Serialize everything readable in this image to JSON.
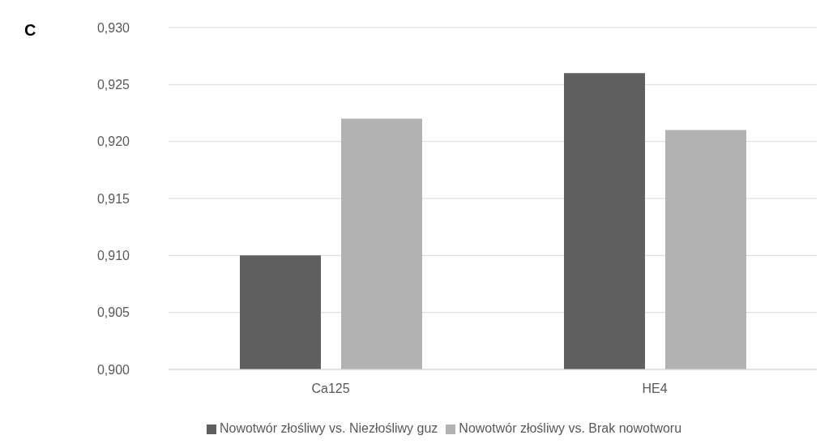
{
  "chart_data": {
    "type": "bar",
    "title": "C",
    "categories": [
      "Ca125",
      "HE4"
    ],
    "series": [
      {
        "name": "Nowotwór złośliwy vs. Niezłośliwy guz",
        "color": "#5f5f5f",
        "values": [
          0.91,
          0.926
        ]
      },
      {
        "name": "Nowotwór złośliwy vs. Brak nowotworu",
        "color": "#b2b2b2",
        "values": [
          0.922,
          0.921
        ]
      }
    ],
    "ylim": [
      0.9,
      0.93
    ],
    "yticks": [
      {
        "value": 0.9,
        "label": "0,900"
      },
      {
        "value": 0.905,
        "label": "0,905"
      },
      {
        "value": 0.91,
        "label": "0,910"
      },
      {
        "value": 0.915,
        "label": "0,915"
      },
      {
        "value": 0.92,
        "label": "0,920"
      },
      {
        "value": 0.925,
        "label": "0,925"
      },
      {
        "value": 0.93,
        "label": "0,930"
      }
    ],
    "grid": "y",
    "legend": "bottom"
  }
}
